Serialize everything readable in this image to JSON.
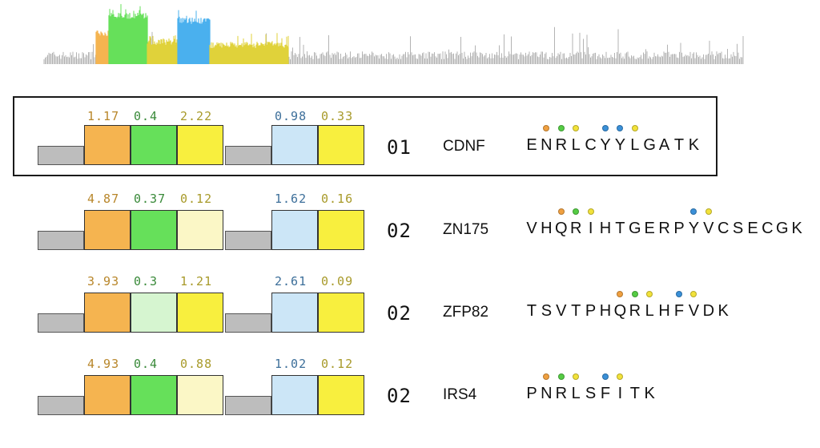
{
  "colors": {
    "base": "#bdbdbd",
    "orange": "#f5b450",
    "green": "#66e05a",
    "green_light": "#d6f5d0",
    "yellow": "#f8ef3e",
    "yellow_light": "#fbf7c6",
    "blue_light": "#cce6f7",
    "score_orange": "#b8862a",
    "score_green": "#3a8a3a",
    "score_yellow": "#a89a2a",
    "score_blue": "#3d6f9a",
    "dot_orange": "#f0a040",
    "dot_green": "#55cc44",
    "dot_yellow": "#f2e23a",
    "dot_blue": "#3a90d8"
  },
  "rows": [
    {
      "rank": "01",
      "gene": "CDNF",
      "highlighted": true,
      "scores": [
        "1.17",
        "0.4",
        "2.22",
        "0.98",
        "0.33"
      ],
      "blocks": [
        "orange",
        "green",
        "yellow",
        "blue_light",
        "yellow"
      ],
      "sequence": [
        "E",
        "N",
        "R",
        "L",
        "C",
        "Y",
        "Y",
        "L",
        "G",
        "A",
        "T",
        "K"
      ],
      "dots": [
        null,
        "orange",
        "green",
        "yellow",
        null,
        "blue",
        "blue",
        "yellow",
        null,
        null,
        null,
        null
      ]
    },
    {
      "rank": "02",
      "gene": "ZN175",
      "highlighted": false,
      "scores": [
        "4.87",
        "0.37",
        "0.12",
        "1.62",
        "0.16"
      ],
      "blocks": [
        "orange",
        "green",
        "yellow_light",
        "blue_light",
        "yellow"
      ],
      "sequence": [
        "V",
        "H",
        "Q",
        "R",
        "I",
        "H",
        "T",
        "G",
        "E",
        "R",
        "P",
        "Y",
        "V",
        "C",
        "S",
        "E",
        "C",
        "G",
        "K"
      ],
      "dots": [
        null,
        null,
        "orange",
        "green",
        "yellow",
        null,
        null,
        null,
        null,
        null,
        null,
        "blue",
        "yellow",
        null,
        null,
        null,
        null,
        null,
        null
      ]
    },
    {
      "rank": "02",
      "gene": "ZFP82",
      "highlighted": false,
      "scores": [
        "3.93",
        "0.3",
        "1.21",
        "2.61",
        "0.09"
      ],
      "blocks": [
        "orange",
        "green_light",
        "yellow",
        "blue_light",
        "yellow"
      ],
      "sequence": [
        "T",
        "S",
        "V",
        "T",
        "P",
        "H",
        "Q",
        "R",
        "L",
        "H",
        "F",
        "V",
        "D",
        "K"
      ],
      "dots": [
        null,
        null,
        null,
        null,
        null,
        null,
        "orange",
        "green",
        "yellow",
        null,
        "blue",
        "yellow",
        null,
        null
      ]
    },
    {
      "rank": "02",
      "gene": "IRS4",
      "highlighted": false,
      "scores": [
        "4.93",
        "0.4",
        "0.88",
        "1.02",
        "0.12"
      ],
      "blocks": [
        "orange",
        "green",
        "yellow_light",
        "blue_light",
        "yellow"
      ],
      "sequence": [
        "P",
        "N",
        "R",
        "L",
        "S",
        "F",
        "I",
        "T",
        "K"
      ],
      "dots": [
        null,
        "orange",
        "green",
        "yellow",
        null,
        "blue",
        "yellow",
        null,
        null
      ]
    }
  ]
}
